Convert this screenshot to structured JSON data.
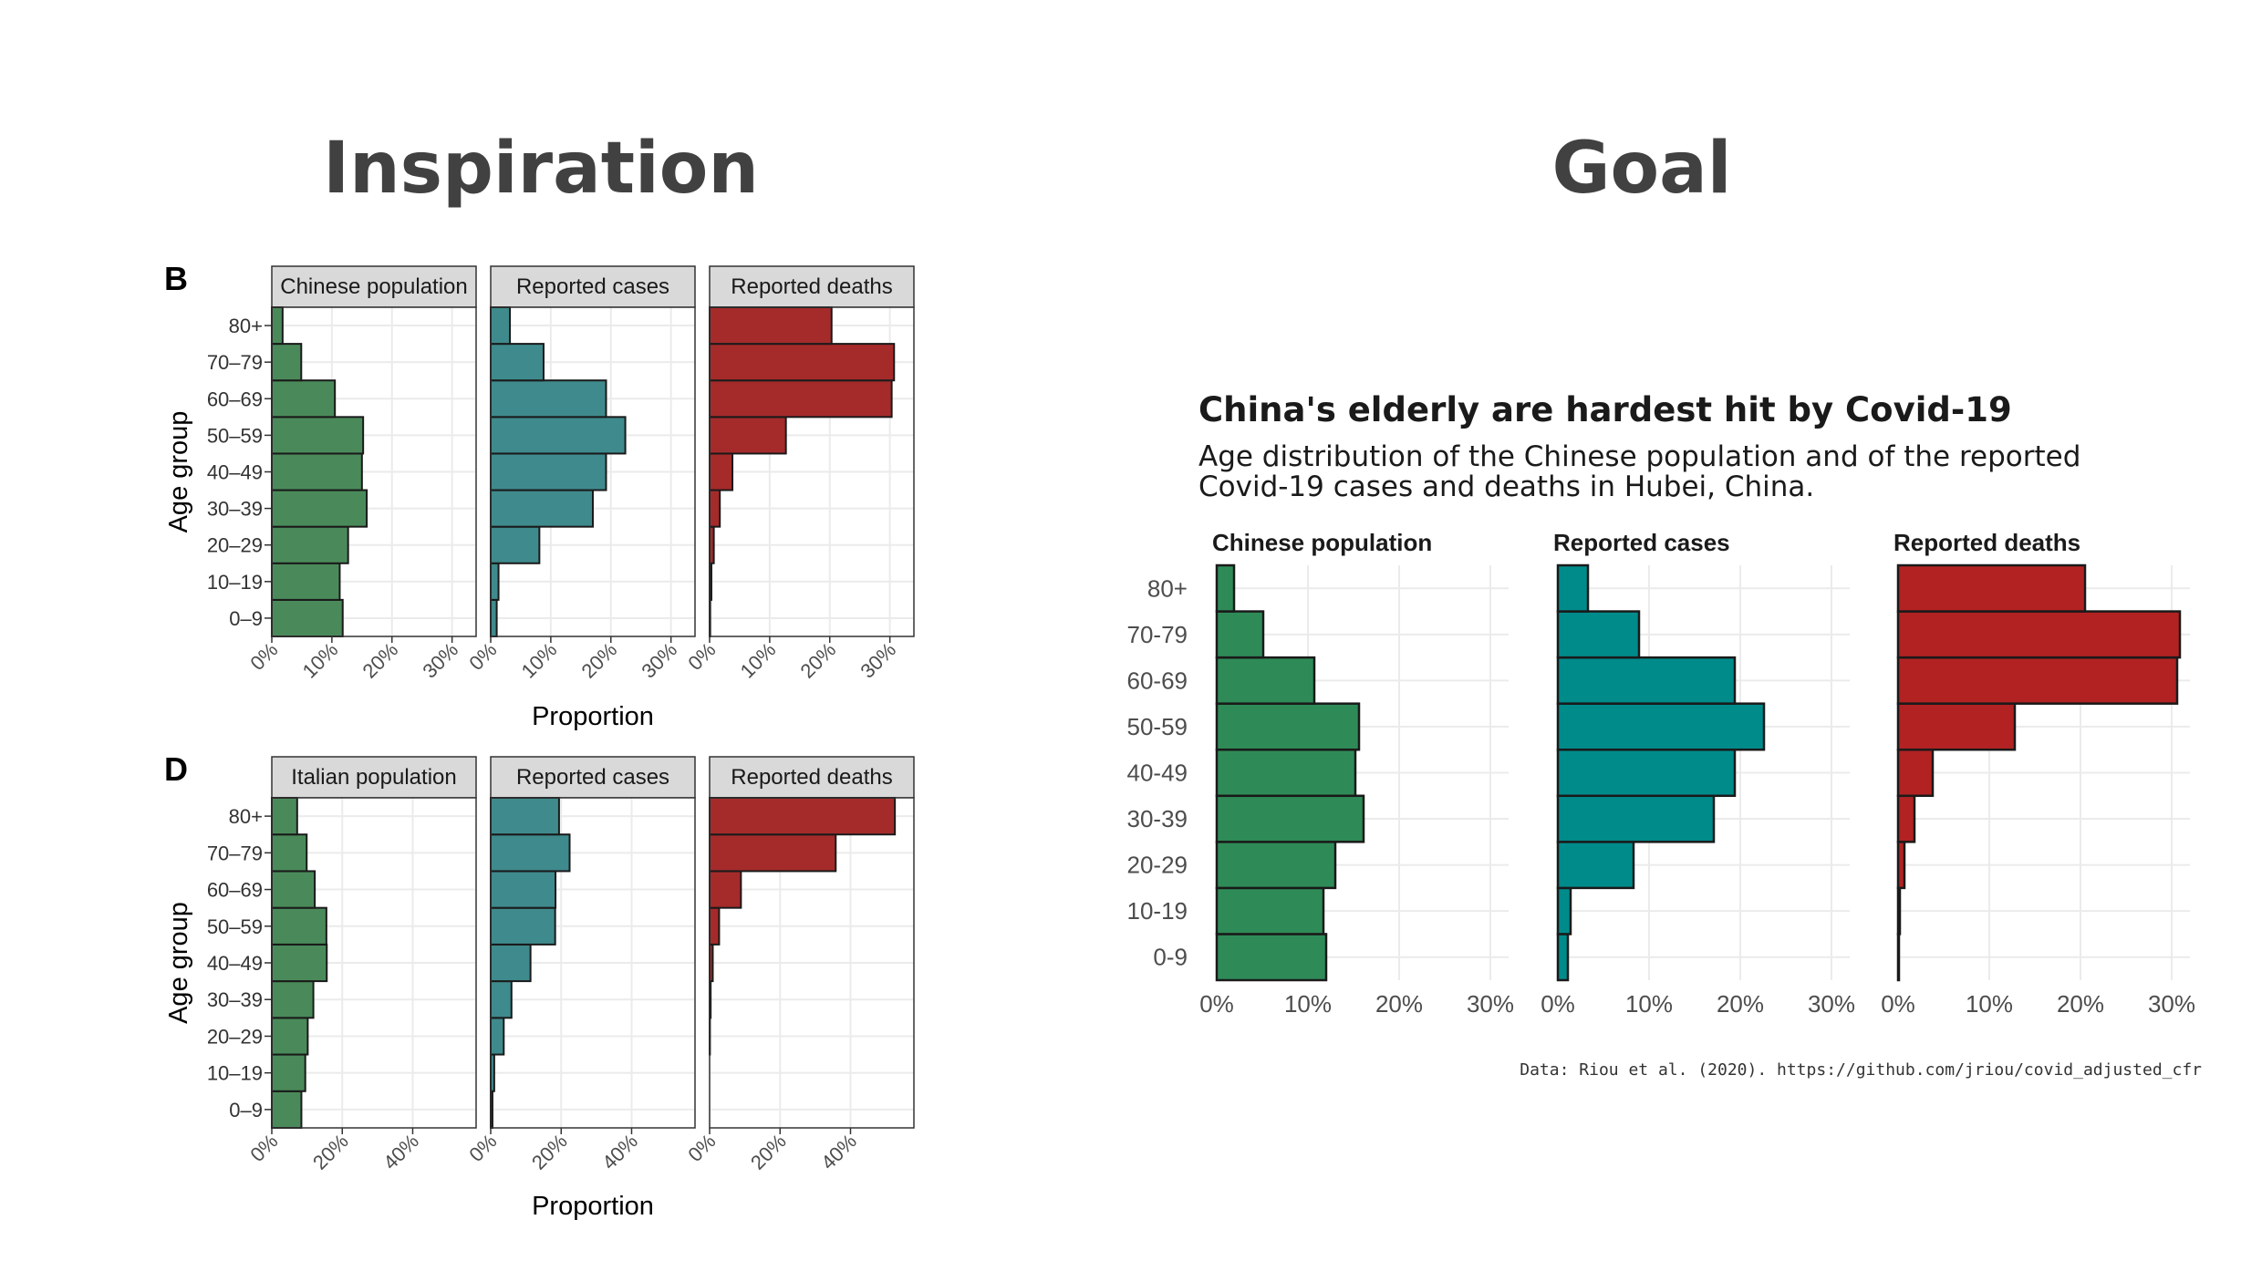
{
  "slide": {
    "left_heading": "Inspiration",
    "right_heading": "Goal"
  },
  "colors": {
    "insp_population": "#4a8a5a",
    "insp_cases": "#3f8a8c",
    "insp_deaths": "#a52b2b",
    "goal_population": "#2e8b57",
    "goal_cases": "#008b8b",
    "goal_deaths": "#b22222",
    "strip_bg": "#d9d9d9",
    "grid": "#ebebeb",
    "text_dark": "#1a1a1a",
    "tick_text": "#4d4d4d"
  },
  "chart_data": [
    {
      "id": "panel_B",
      "type": "bar",
      "orientation": "horizontal",
      "panel_label": "B",
      "ylabel": "Age group",
      "xlabel": "Proportion",
      "categories": [
        "0–9",
        "10–19",
        "20–29",
        "30–39",
        "40–49",
        "50–59",
        "60–69",
        "70–79",
        "80+"
      ],
      "xlim": [
        0,
        0.34
      ],
      "xticks": [
        0,
        0.1,
        0.2,
        0.3
      ],
      "xtick_labels": [
        "0%",
        "10%",
        "20%",
        "30%"
      ],
      "grid": true,
      "series": [
        {
          "name": "Chinese population",
          "color_key": "insp_population",
          "values": [
            0.118,
            0.113,
            0.127,
            0.158,
            0.15,
            0.152,
            0.105,
            0.049,
            0.018
          ]
        },
        {
          "name": "Reported cases",
          "color_key": "insp_cases",
          "values": [
            0.01,
            0.013,
            0.081,
            0.17,
            0.192,
            0.224,
            0.192,
            0.088,
            0.032
          ]
        },
        {
          "name": "Reported deaths",
          "color_key": "insp_deaths",
          "values": [
            0.001,
            0.003,
            0.007,
            0.017,
            0.038,
            0.127,
            0.303,
            0.307,
            0.203
          ]
        }
      ]
    },
    {
      "id": "panel_D",
      "type": "bar",
      "orientation": "horizontal",
      "panel_label": "D",
      "ylabel": "Age group",
      "xlabel": "Proportion",
      "categories": [
        "0–9",
        "10–19",
        "20–29",
        "30–39",
        "40–49",
        "50–59",
        "60–69",
        "70–79",
        "80+"
      ],
      "xlim": [
        0,
        0.58
      ],
      "xticks": [
        0,
        0.2,
        0.4
      ],
      "xtick_labels": [
        "0%",
        "20%",
        "40%"
      ],
      "grid": true,
      "series": [
        {
          "name": "Italian population",
          "color_key": "insp_population",
          "values": [
            0.084,
            0.095,
            0.102,
            0.118,
            0.156,
            0.155,
            0.122,
            0.099,
            0.072
          ]
        },
        {
          "name": "Reported cases",
          "color_key": "insp_cases",
          "values": [
            0.005,
            0.01,
            0.037,
            0.059,
            0.113,
            0.183,
            0.184,
            0.224,
            0.194
          ]
        },
        {
          "name": "Reported deaths",
          "color_key": "insp_deaths",
          "values": [
            0.0,
            0.0,
            0.001,
            0.003,
            0.009,
            0.027,
            0.089,
            0.358,
            0.526
          ]
        }
      ]
    },
    {
      "id": "goal_chart",
      "type": "bar",
      "orientation": "horizontal",
      "title": "China's elderly are hardest hit by Covid-19",
      "subtitle_lines": [
        "Age distribution of the Chinese population and of the reported",
        "Covid-19 cases and deaths in Hubei, China."
      ],
      "caption": "Data: Riou et al. (2020). https://github.com/jriou/covid_adjusted_cfr",
      "categories": [
        "0-9",
        "10-19",
        "20-29",
        "30-39",
        "40-49",
        "50-59",
        "60-69",
        "70-79",
        "80+"
      ],
      "xlim": [
        0,
        0.32
      ],
      "xticks": [
        0,
        0.1,
        0.2,
        0.3
      ],
      "xtick_labels": [
        "0%",
        "10%",
        "20%",
        "30%"
      ],
      "grid": true,
      "series": [
        {
          "name": "Chinese population",
          "color_key": "goal_population",
          "values": [
            0.12,
            0.117,
            0.13,
            0.161,
            0.152,
            0.156,
            0.107,
            0.051,
            0.019
          ]
        },
        {
          "name": "Reported cases",
          "color_key": "goal_cases",
          "values": [
            0.011,
            0.014,
            0.083,
            0.171,
            0.194,
            0.226,
            0.194,
            0.089,
            0.033
          ]
        },
        {
          "name": "Reported deaths",
          "color_key": "goal_deaths",
          "values": [
            0.001,
            0.002,
            0.007,
            0.018,
            0.038,
            0.128,
            0.306,
            0.309,
            0.205
          ]
        }
      ]
    }
  ]
}
